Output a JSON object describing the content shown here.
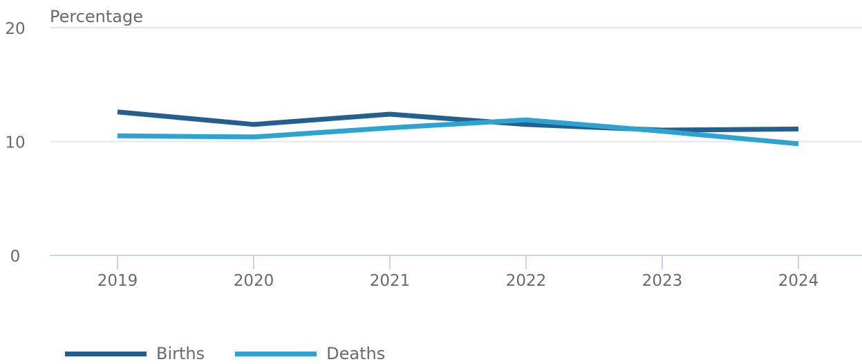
{
  "chart_data": {
    "type": "line",
    "ylabel": "Percentage",
    "ylim": [
      0,
      20
    ],
    "yticks": [
      "0",
      "10",
      "20"
    ],
    "categories": [
      "2019",
      "2020",
      "2021",
      "2022",
      "2023",
      "2024"
    ],
    "grid": true,
    "legend_position": "bottom-left",
    "series": [
      {
        "name": "Births",
        "color": "#245f8f",
        "values": [
          12.6,
          11.5,
          12.4,
          11.5,
          11.0,
          11.1
        ]
      },
      {
        "name": "Deaths",
        "color": "#2ea3d1",
        "values": [
          10.5,
          10.4,
          11.2,
          11.9,
          10.9,
          9.8
        ]
      }
    ]
  }
}
